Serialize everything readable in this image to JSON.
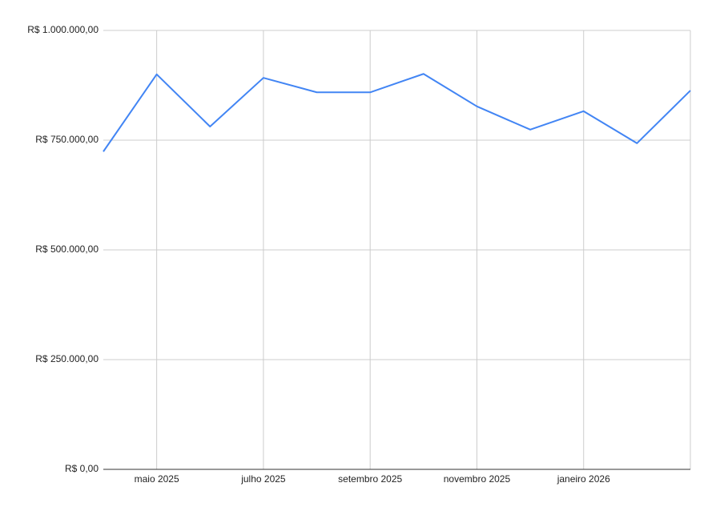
{
  "chart_data": {
    "type": "line",
    "categories": [
      null,
      "maio 2025",
      null,
      "julho 2025",
      null,
      "setembro 2025",
      null,
      "novembro 2025",
      null,
      "janeiro 2026",
      null,
      null
    ],
    "series": [
      {
        "color": "#4285f4",
        "values": [
          724000,
          900000,
          781000,
          892000,
          859000,
          859000,
          901000,
          827000,
          774000,
          816000,
          743000,
          863000
        ]
      }
    ],
    "ylim": [
      0,
      1000000
    ],
    "yticks": [
      {
        "value": 0,
        "label": "R$ 0,00"
      },
      {
        "value": 250000,
        "label": "R$ 250.000,00"
      },
      {
        "value": 500000,
        "label": "R$ 500.000,00"
      },
      {
        "value": 750000,
        "label": "R$ 750.000,00"
      },
      {
        "value": 1000000,
        "label": "R$ 1.000.000,00"
      }
    ],
    "grid": true
  }
}
